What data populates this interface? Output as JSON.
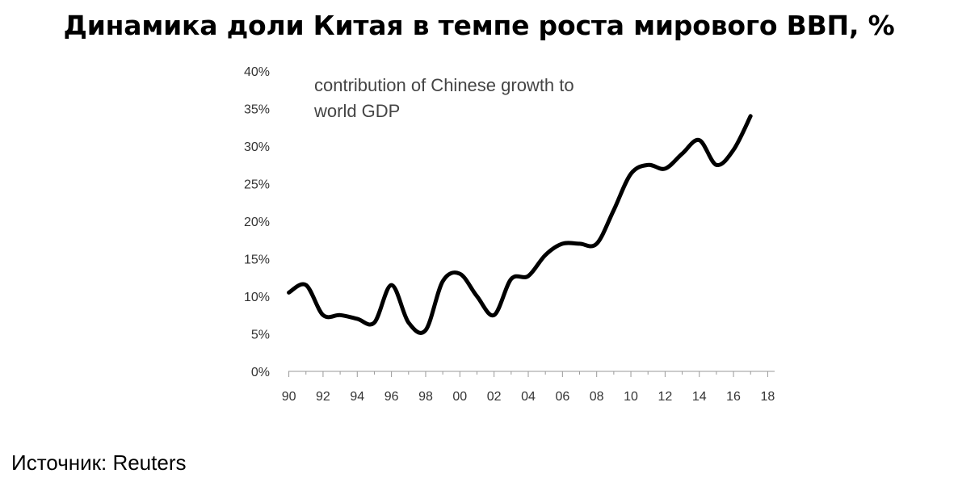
{
  "title": "Динамика доли Китая в темпе роста мирового ВВП, %",
  "source": "Источник: Reuters",
  "chart_data": {
    "type": "line",
    "title": "Динамика доли Китая в темпе роста мирового ВВП, %",
    "annotation_lines": [
      "contribution of Chinese growth to",
      "world GDP"
    ],
    "xlabel": "",
    "ylabel": "",
    "x_tick_labels": [
      "90",
      "92",
      "94",
      "96",
      "98",
      "00",
      "02",
      "04",
      "06",
      "08",
      "10",
      "12",
      "14",
      "16",
      "18"
    ],
    "x_tick_years": [
      1990,
      1992,
      1994,
      1996,
      1998,
      2000,
      2002,
      2004,
      2006,
      2008,
      2010,
      2012,
      2014,
      2016,
      2018
    ],
    "y_tick_labels": [
      "0%",
      "5%",
      "10%",
      "15%",
      "20%",
      "25%",
      "30%",
      "35%",
      "40%"
    ],
    "y_tick_values": [
      0,
      5,
      10,
      15,
      20,
      25,
      30,
      35,
      40
    ],
    "xlim": [
      1989.5,
      2018.5
    ],
    "ylim": [
      0,
      40
    ],
    "grid": false,
    "series": [
      {
        "name": "contribution of Chinese growth to world GDP",
        "color": "#000000",
        "x": [
          1990,
          1991,
          1992,
          1993,
          1994,
          1995,
          1996,
          1997,
          1998,
          1999,
          2000,
          2001,
          2002,
          2003,
          2004,
          2005,
          2006,
          2007,
          2008,
          2009,
          2010,
          2011,
          2012,
          2013,
          2014,
          2015,
          2016,
          2017
        ],
        "values": [
          10.5,
          11.5,
          7.5,
          7.5,
          7.0,
          6.5,
          11.5,
          6.5,
          5.5,
          12.0,
          13.0,
          10.0,
          7.5,
          12.3,
          12.7,
          15.5,
          17.0,
          17.0,
          17.0,
          21.5,
          26.3,
          27.5,
          27.0,
          29.0,
          30.8,
          27.5,
          29.5,
          34.0
        ]
      }
    ]
  }
}
